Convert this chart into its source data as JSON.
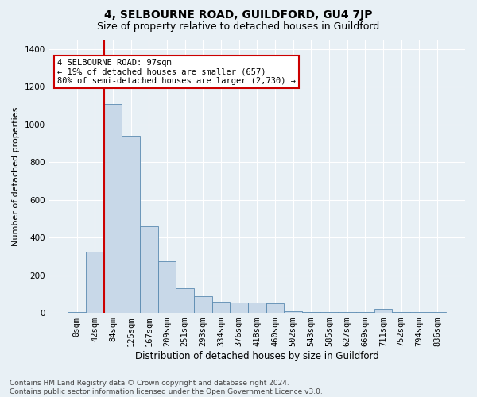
{
  "title": "4, SELBOURNE ROAD, GUILDFORD, GU4 7JP",
  "subtitle": "Size of property relative to detached houses in Guildford",
  "xlabel": "Distribution of detached houses by size in Guildford",
  "ylabel": "Number of detached properties",
  "footnote1": "Contains HM Land Registry data © Crown copyright and database right 2024.",
  "footnote2": "Contains public sector information licensed under the Open Government Licence v3.0.",
  "bar_labels": [
    "0sqm",
    "42sqm",
    "84sqm",
    "125sqm",
    "167sqm",
    "209sqm",
    "251sqm",
    "293sqm",
    "334sqm",
    "376sqm",
    "418sqm",
    "460sqm",
    "502sqm",
    "543sqm",
    "585sqm",
    "627sqm",
    "669sqm",
    "711sqm",
    "752sqm",
    "794sqm",
    "836sqm"
  ],
  "bar_values": [
    5,
    325,
    1110,
    940,
    460,
    275,
    130,
    90,
    60,
    55,
    55,
    50,
    10,
    5,
    5,
    5,
    5,
    20,
    5,
    5,
    5
  ],
  "bar_color": "#c8d8e8",
  "bar_edge_color": "#5a8ab0",
  "ylim": [
    0,
    1450
  ],
  "yticks": [
    0,
    200,
    400,
    600,
    800,
    1000,
    1200,
    1400
  ],
  "vline_index": 2,
  "annotation_text": "4 SELBOURNE ROAD: 97sqm\n← 19% of detached houses are smaller (657)\n80% of semi-detached houses are larger (2,730) →",
  "annotation_box_color": "#ffffff",
  "annotation_box_edge_color": "#cc0000",
  "vline_color": "#cc0000",
  "background_color": "#e8f0f5",
  "plot_bg_color": "#e8f0f5",
  "grid_color": "#ffffff",
  "title_fontsize": 10,
  "subtitle_fontsize": 9,
  "xlabel_fontsize": 8.5,
  "ylabel_fontsize": 8,
  "tick_fontsize": 7.5,
  "annotation_fontsize": 7.5,
  "footnote_fontsize": 6.5
}
